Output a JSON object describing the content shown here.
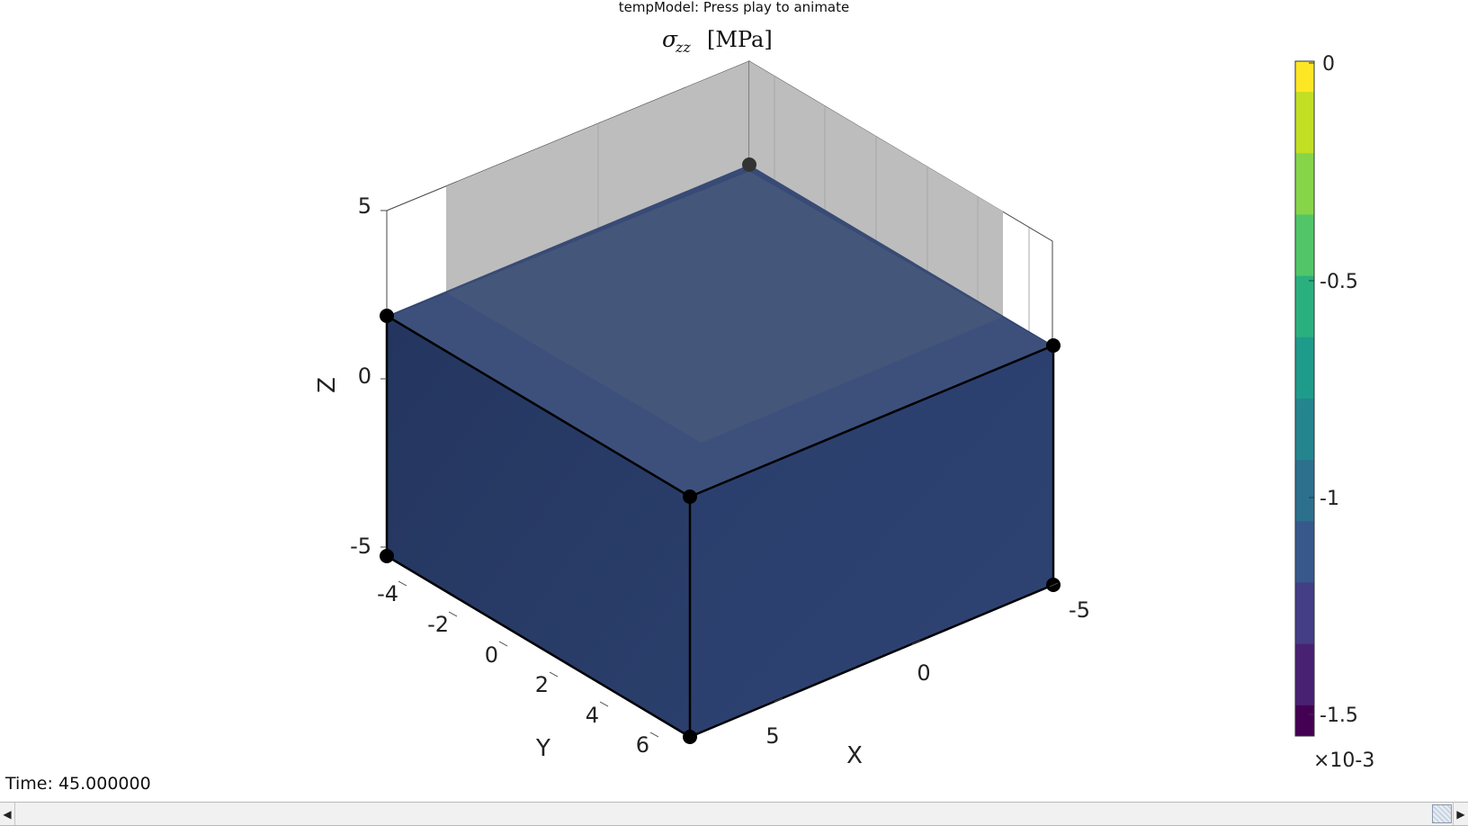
{
  "window": {
    "title": "tempModel: Press play to animate"
  },
  "plot": {
    "title": "σzz [MPa]",
    "z_axis_label": "Z",
    "y_axis_label": "Y",
    "x_axis_label": "X",
    "z_ticks": [
      "5",
      "0",
      "-5"
    ],
    "y_ticks": [
      "-4",
      "-2",
      "0",
      "2",
      "4",
      "6"
    ],
    "x_ticks": [
      "-5",
      "0",
      "5"
    ],
    "box_color": "#283b6a",
    "edge_color": "#000000"
  },
  "colorbar": {
    "colormap": "viridis",
    "tick_labels": [
      "0",
      "-0.5",
      "-1",
      "-1.5"
    ],
    "exponent_label": "×10-3",
    "range": [
      -0.0016,
      0
    ],
    "current_value_color": "#283b6a"
  },
  "footer": {
    "time_label": "Time: 45.000000"
  },
  "slider": {
    "left_arrow_icon": "triangle-left-icon",
    "right_arrow_icon": "triangle-right-icon",
    "position": 1.0
  }
}
